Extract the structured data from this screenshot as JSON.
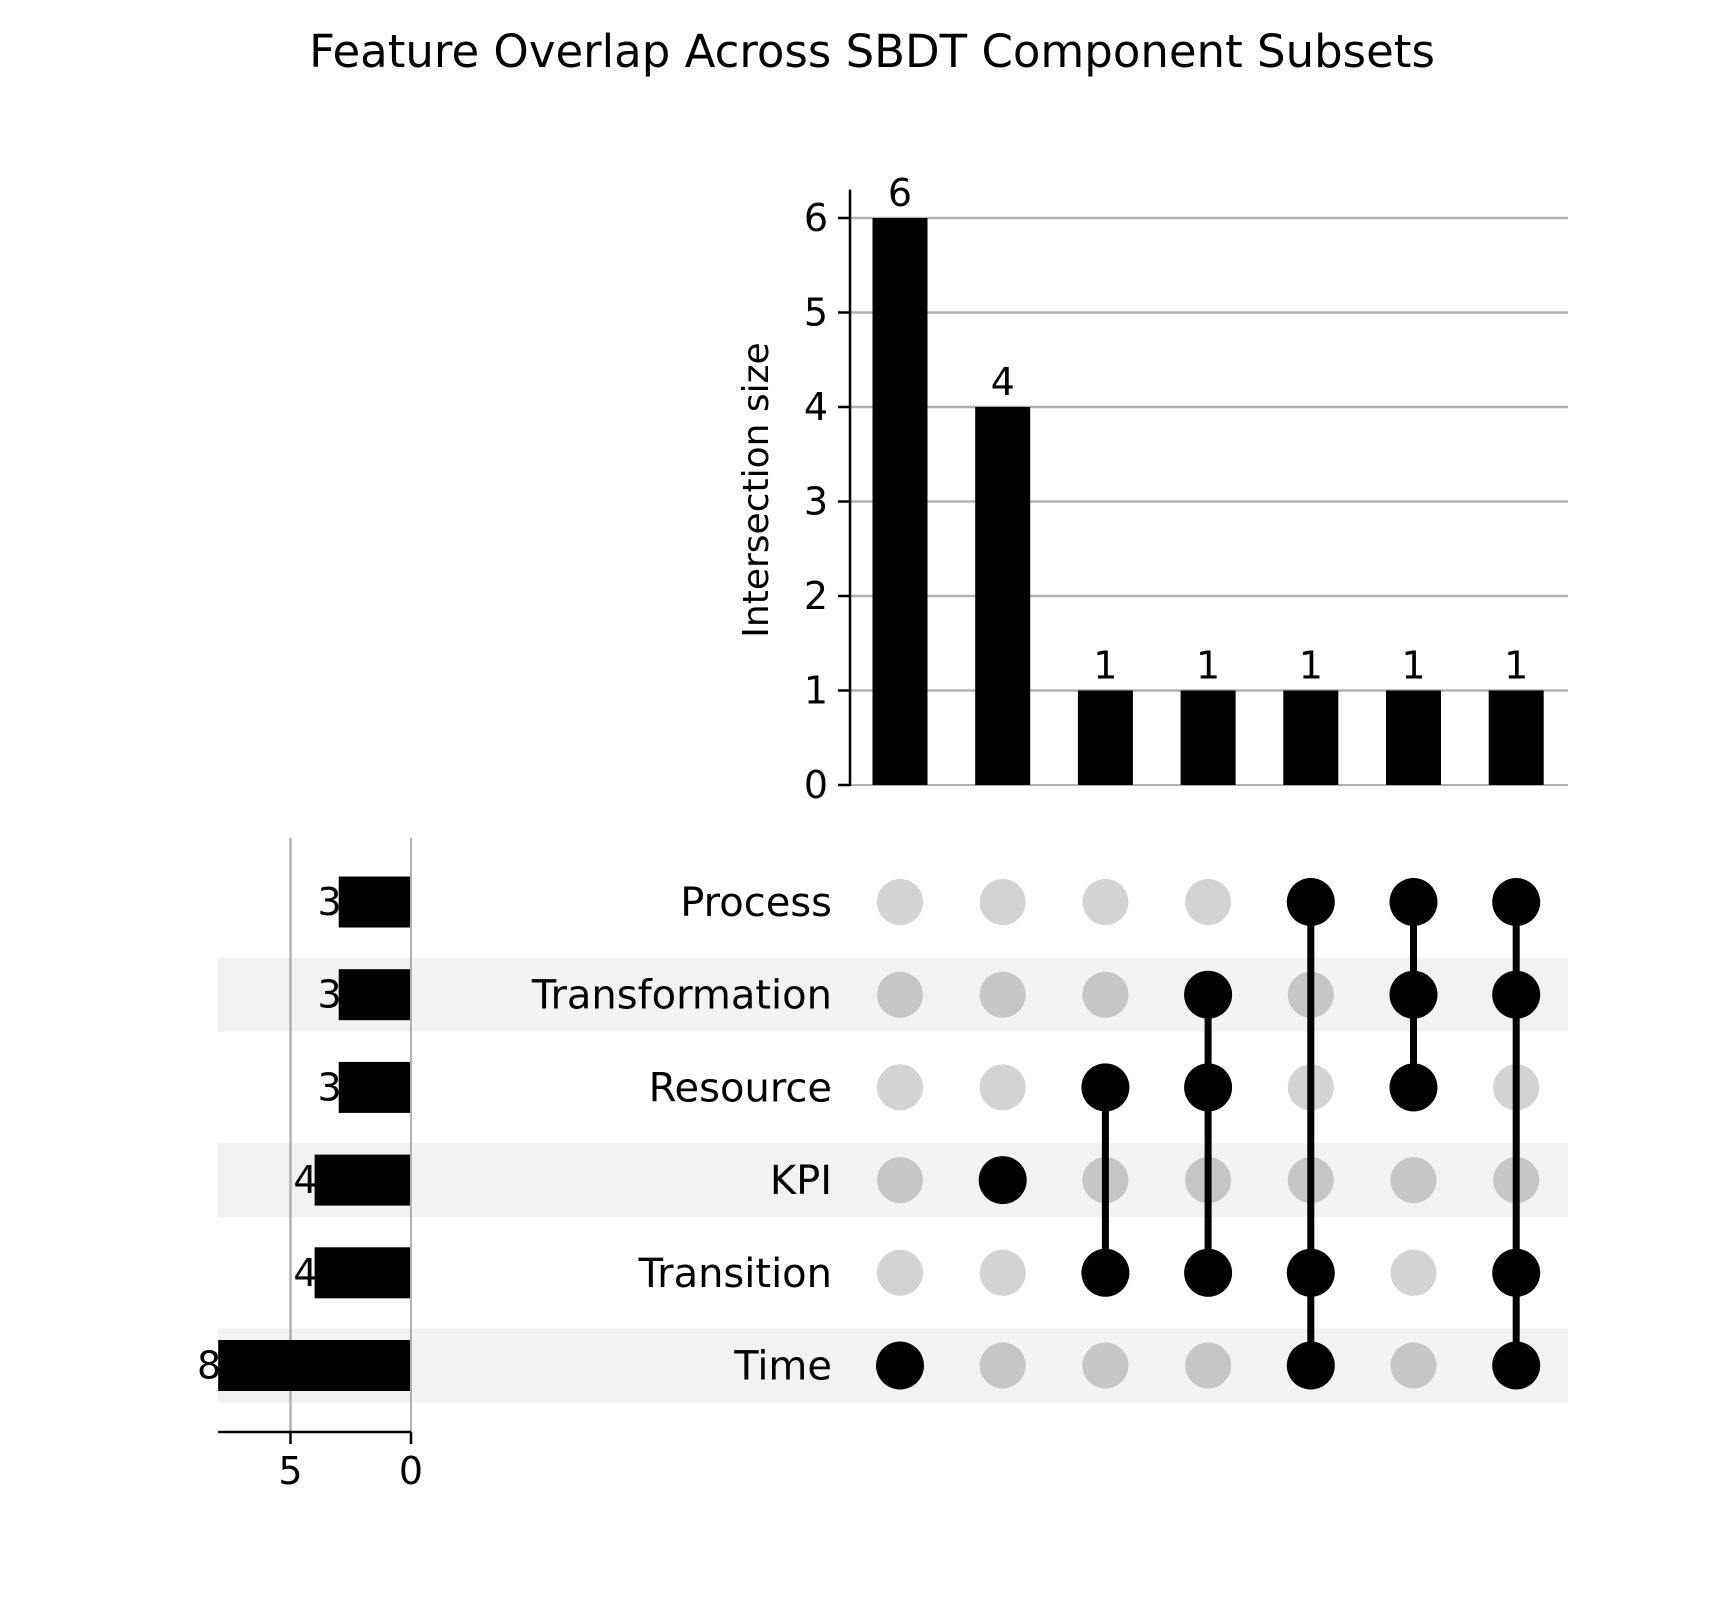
{
  "chart_data": {
    "type": "upset",
    "title": "Feature Overlap Across SBDT Component Subsets",
    "intersection_axis": {
      "label": "Intersection size",
      "ylim": [
        0,
        6.3
      ],
      "ticks": [
        0,
        1,
        2,
        3,
        4,
        5,
        6
      ]
    },
    "set_size_axis": {
      "label": "",
      "xlim": [
        0,
        8
      ],
      "ticks": [
        0,
        5
      ],
      "direction": "reversed"
    },
    "sets": [
      {
        "name": "Process",
        "size": 3
      },
      {
        "name": "Transformation",
        "size": 3
      },
      {
        "name": "Resource",
        "size": 3
      },
      {
        "name": "KPI",
        "size": 4
      },
      {
        "name": "Transition",
        "size": 4
      },
      {
        "name": "Time",
        "size": 8
      }
    ],
    "intersections": [
      {
        "members": [
          "Time"
        ],
        "size": 6
      },
      {
        "members": [
          "KPI"
        ],
        "size": 4
      },
      {
        "members": [
          "Resource",
          "Transition"
        ],
        "size": 1
      },
      {
        "members": [
          "Transformation",
          "Resource",
          "Transition"
        ],
        "size": 1
      },
      {
        "members": [
          "Process",
          "Transition",
          "Time"
        ],
        "size": 1
      },
      {
        "members": [
          "Process",
          "Transformation",
          "Resource"
        ],
        "size": 1
      },
      {
        "members": [
          "Process",
          "Transformation",
          "Transition",
          "Time"
        ],
        "size": 1
      }
    ],
    "colors": {
      "bar": "#000000",
      "dot_active": "#000000",
      "dot_inactive_light_row": "#d3d3d3",
      "dot_inactive_shaded_row": "#c6c6c6",
      "row_shade": "#f2f2f2",
      "grid": "#b0b0b0"
    },
    "grid": true
  }
}
